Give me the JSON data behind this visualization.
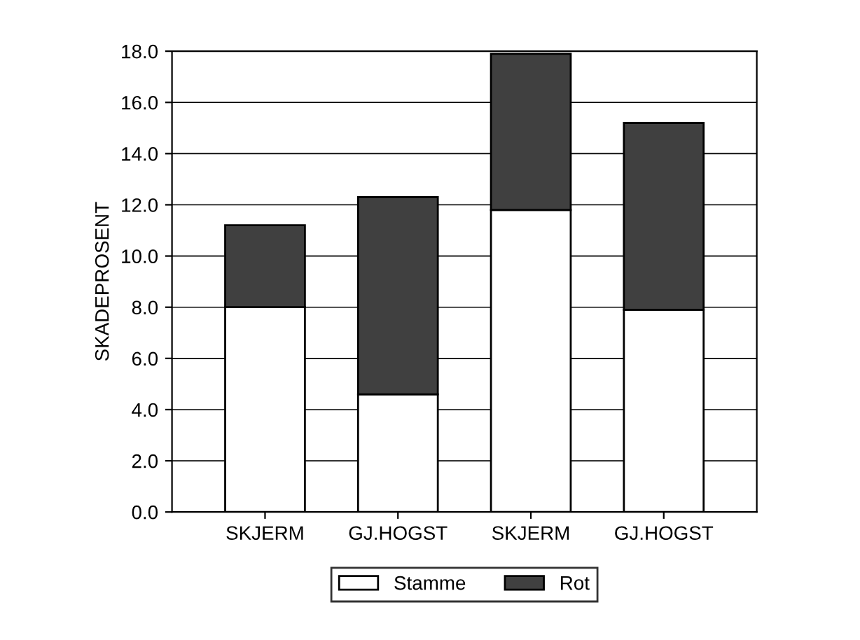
{
  "chart_data": {
    "type": "bar",
    "stacked": true,
    "ylabel": "SKADEPROSENT",
    "categories": [
      "SKJERM",
      "GJ.HOGST",
      "SKJERM",
      "GJ.HOGST"
    ],
    "series": [
      {
        "name": "Stamme",
        "color": "#ffffff",
        "values": [
          8.0,
          4.6,
          11.8,
          7.9
        ]
      },
      {
        "name": "Rot",
        "color": "#404040",
        "values": [
          3.2,
          7.7,
          6.1,
          7.3
        ]
      }
    ],
    "ylim": [
      0,
      18
    ],
    "yticks": [
      {
        "value": 0,
        "label": "0.0"
      },
      {
        "value": 2,
        "label": "2.0"
      },
      {
        "value": 4,
        "label": "4.0"
      },
      {
        "value": 6,
        "label": "6.0"
      },
      {
        "value": 8,
        "label": "8.0"
      },
      {
        "value": 10,
        "label": "10.0"
      },
      {
        "value": 12,
        "label": "12.0"
      },
      {
        "value": 14,
        "label": "14.0"
      },
      {
        "value": 16,
        "label": "16.0"
      },
      {
        "value": 18,
        "label": "18.0"
      }
    ],
    "grid": "y",
    "legend": "bottom"
  }
}
